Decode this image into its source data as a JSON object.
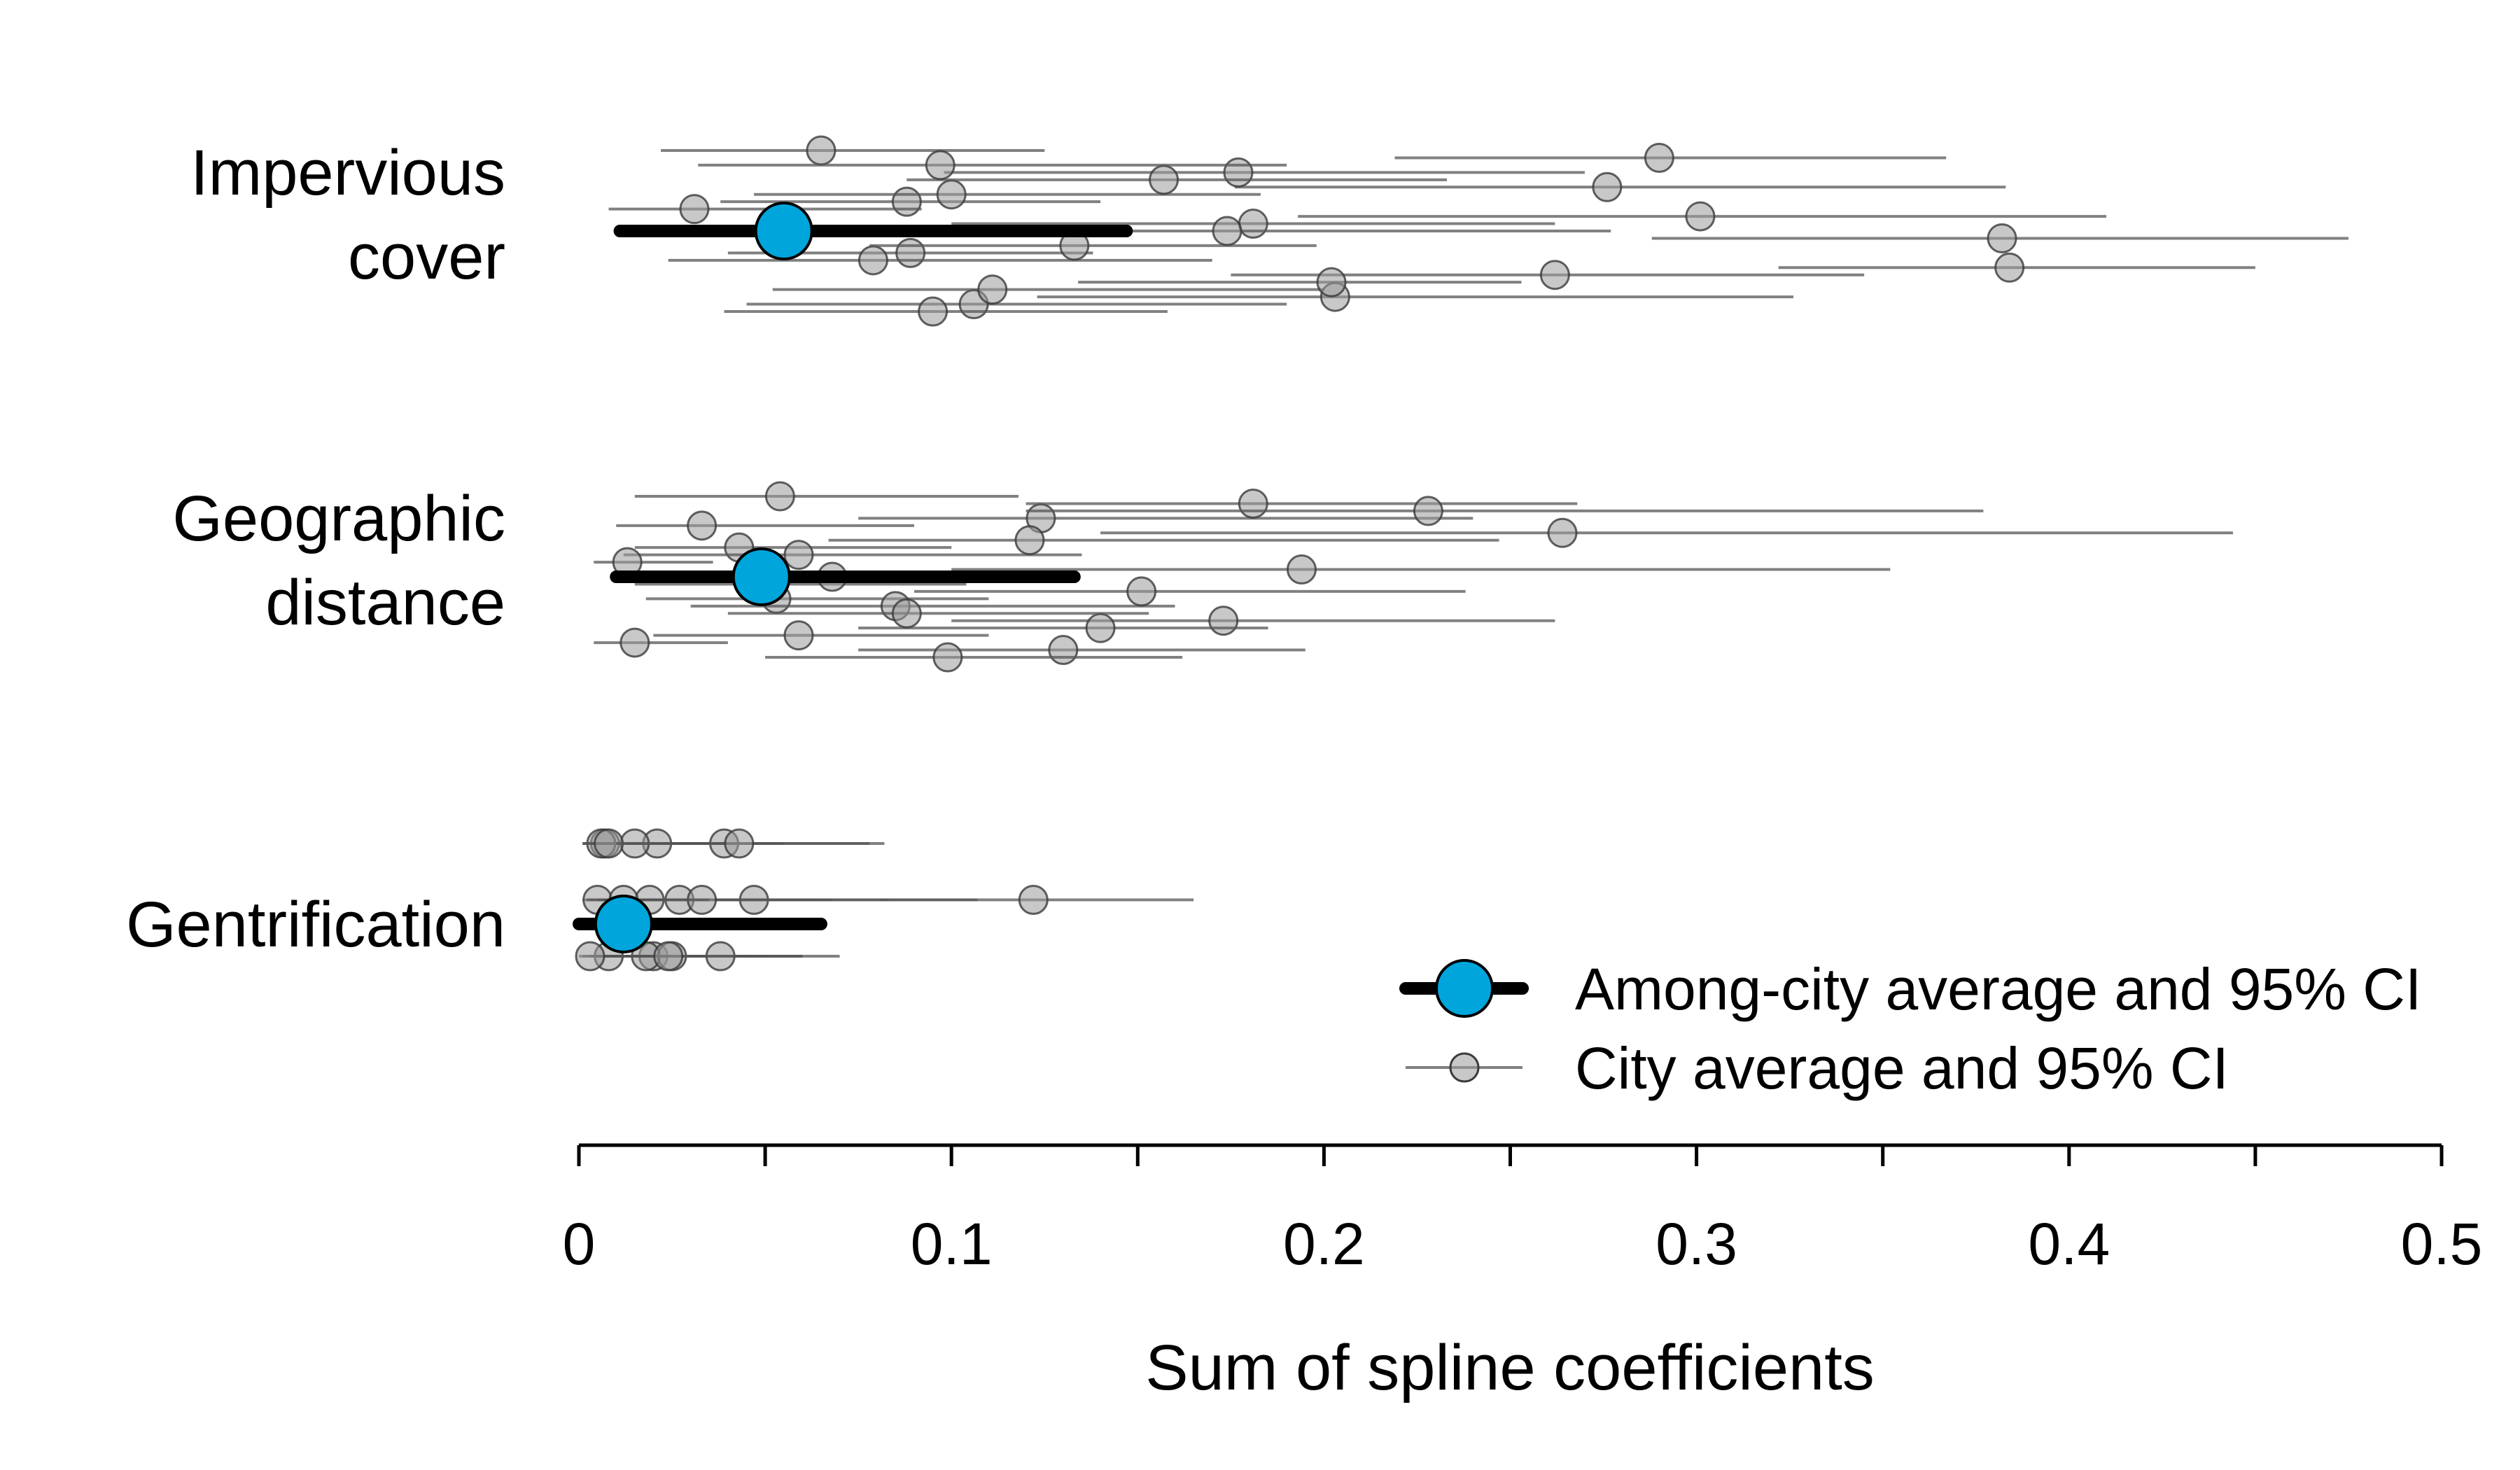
{
  "chart_data": {
    "type": "scatter",
    "subtype": "dot-and-whisker",
    "xlabel": "Sum of spline coefficients",
    "xlim": [
      0,
      0.5
    ],
    "xticks": [
      0,
      0.05,
      0.1,
      0.15,
      0.2,
      0.25,
      0.3,
      0.35,
      0.4,
      0.45,
      0.5
    ],
    "xtick_labels": [
      {
        "value": 0,
        "label": "0"
      },
      {
        "value": 0.1,
        "label": "0.1"
      },
      {
        "value": 0.2,
        "label": "0.2"
      },
      {
        "value": 0.3,
        "label": "0.3"
      },
      {
        "value": 0.4,
        "label": "0.4"
      },
      {
        "value": 0.5,
        "label": "0.5"
      }
    ],
    "grid": false,
    "legend_position": "bottom-right",
    "colors": {
      "among_city": "#00a5dc",
      "city_point": "#9a9a9a",
      "ci_line": "#555555",
      "axis": "#000000"
    },
    "legend": [
      {
        "key": "among",
        "label": "Among-city average and 95% CI"
      },
      {
        "key": "city",
        "label": "City average and 95% CI"
      }
    ],
    "groups": [
      {
        "name": "Impervious cover",
        "label_lines": [
          "Impervious",
          "cover"
        ],
        "among_city": {
          "estimate": 0.055,
          "lower": 0.011,
          "upper": 0.147
        },
        "cities": [
          {
            "estimate": 0.065,
            "lower": 0.022,
            "upper": 0.125
          },
          {
            "estimate": 0.088,
            "lower": 0.038,
            "upper": 0.14
          },
          {
            "estimate": 0.089,
            "lower": 0.04,
            "upper": 0.138
          },
          {
            "estimate": 0.106,
            "lower": 0.045,
            "upper": 0.19
          },
          {
            "estimate": 0.276,
            "lower": 0.176,
            "upper": 0.383
          },
          {
            "estimate": 0.382,
            "lower": 0.288,
            "upper": 0.475
          },
          {
            "estimate": 0.111,
            "lower": 0.052,
            "upper": 0.2
          },
          {
            "estimate": 0.177,
            "lower": 0.098,
            "upper": 0.27
          },
          {
            "estimate": 0.181,
            "lower": 0.1,
            "upper": 0.262
          },
          {
            "estimate": 0.262,
            "lower": 0.175,
            "upper": 0.345
          },
          {
            "estimate": 0.29,
            "lower": 0.219,
            "upper": 0.367
          },
          {
            "estimate": 0.031,
            "lower": 0.008,
            "upper": 0.092
          },
          {
            "estimate": 0.079,
            "lower": 0.024,
            "upper": 0.17
          },
          {
            "estimate": 0.095,
            "lower": 0.039,
            "upper": 0.158
          },
          {
            "estimate": 0.1,
            "lower": 0.047,
            "upper": 0.183
          },
          {
            "estimate": 0.133,
            "lower": 0.078,
            "upper": 0.198
          },
          {
            "estimate": 0.203,
            "lower": 0.123,
            "upper": 0.326
          },
          {
            "estimate": 0.157,
            "lower": 0.088,
            "upper": 0.233
          },
          {
            "estimate": 0.174,
            "lower": 0.097,
            "upper": 0.277
          },
          {
            "estimate": 0.202,
            "lower": 0.134,
            "upper": 0.253
          },
          {
            "estimate": 0.097,
            "lower": 0.032,
            "upper": 0.19
          },
          {
            "estimate": 0.301,
            "lower": 0.193,
            "upper": 0.41
          },
          {
            "estimate": 0.384,
            "lower": 0.322,
            "upper": 0.45
          }
        ]
      },
      {
        "name": "Geographic distance",
        "label_lines": [
          "Geographic",
          "distance"
        ],
        "among_city": {
          "estimate": 0.049,
          "lower": 0.01,
          "upper": 0.133
        },
        "cities": [
          {
            "estimate": 0.054,
            "lower": 0.015,
            "upper": 0.118
          },
          {
            "estimate": 0.043,
            "lower": 0.015,
            "upper": 0.1
          },
          {
            "estimate": 0.053,
            "lower": 0.018,
            "upper": 0.11
          },
          {
            "estimate": 0.13,
            "lower": 0.075,
            "upper": 0.195
          },
          {
            "estimate": 0.264,
            "lower": 0.14,
            "upper": 0.444
          },
          {
            "estimate": 0.052,
            "lower": 0.015,
            "upper": 0.104
          },
          {
            "estimate": 0.059,
            "lower": 0.02,
            "upper": 0.11
          },
          {
            "estimate": 0.124,
            "lower": 0.075,
            "upper": 0.24
          },
          {
            "estimate": 0.194,
            "lower": 0.1,
            "upper": 0.352
          },
          {
            "estimate": 0.173,
            "lower": 0.1,
            "upper": 0.262
          },
          {
            "estimate": 0.181,
            "lower": 0.12,
            "upper": 0.268
          },
          {
            "estimate": 0.059,
            "lower": 0.012,
            "upper": 0.135
          },
          {
            "estimate": 0.085,
            "lower": 0.03,
            "upper": 0.16
          },
          {
            "estimate": 0.099,
            "lower": 0.05,
            "upper": 0.162
          },
          {
            "estimate": 0.121,
            "lower": 0.067,
            "upper": 0.247
          },
          {
            "estimate": 0.151,
            "lower": 0.09,
            "upper": 0.238
          },
          {
            "estimate": 0.015,
            "lower": 0.004,
            "upper": 0.04
          },
          {
            "estimate": 0.033,
            "lower": 0.01,
            "upper": 0.09
          },
          {
            "estimate": 0.068,
            "lower": 0.028,
            "upper": 0.13
          },
          {
            "estimate": 0.14,
            "lower": 0.075,
            "upper": 0.185
          },
          {
            "estimate": 0.228,
            "lower": 0.12,
            "upper": 0.377
          },
          {
            "estimate": 0.013,
            "lower": 0.004,
            "upper": 0.036
          },
          {
            "estimate": 0.088,
            "lower": 0.04,
            "upper": 0.153
          }
        ]
      },
      {
        "name": "Gentrification",
        "label_lines": [
          "Gentrification"
        ],
        "among_city": {
          "estimate": 0.012,
          "lower": 0,
          "upper": 0.065
        },
        "cities": [
          {
            "estimate": 0.007,
            "lower": 0.001,
            "upper": 0.03
          },
          {
            "estimate": 0.019,
            "lower": 0.003,
            "upper": 0.063
          },
          {
            "estimate": 0.008,
            "lower": 0.001,
            "upper": 0.03
          },
          {
            "estimate": 0.039,
            "lower": 0.008,
            "upper": 0.082
          },
          {
            "estimate": 0.005,
            "lower": 0.001,
            "upper": 0.025
          },
          {
            "estimate": 0.02,
            "lower": 0.003,
            "upper": 0.05
          },
          {
            "estimate": 0.021,
            "lower": 0.004,
            "upper": 0.055
          },
          {
            "estimate": 0.047,
            "lower": 0.01,
            "upper": 0.107
          },
          {
            "estimate": 0.018,
            "lower": 0.003,
            "upper": 0.045
          },
          {
            "estimate": 0.006,
            "lower": 0.001,
            "upper": 0.03
          },
          {
            "estimate": 0.027,
            "lower": 0.005,
            "upper": 0.083
          },
          {
            "estimate": 0.025,
            "lower": 0.005,
            "upper": 0.06
          },
          {
            "estimate": 0.015,
            "lower": 0.002,
            "upper": 0.04
          },
          {
            "estimate": 0.033,
            "lower": 0.006,
            "upper": 0.068
          },
          {
            "estimate": 0.038,
            "lower": 0.008,
            "upper": 0.07
          },
          {
            "estimate": 0.008,
            "lower": 0.001,
            "upper": 0.035
          },
          {
            "estimate": 0.012,
            "lower": 0.002,
            "upper": 0.035
          },
          {
            "estimate": 0.024,
            "lower": 0.005,
            "upper": 0.06
          },
          {
            "estimate": 0.043,
            "lower": 0.01,
            "upper": 0.078
          },
          {
            "estimate": 0.122,
            "lower": 0.081,
            "upper": 0.165
          },
          {
            "estimate": 0.003,
            "lower": 0.0,
            "upper": 0.015
          }
        ]
      }
    ]
  }
}
